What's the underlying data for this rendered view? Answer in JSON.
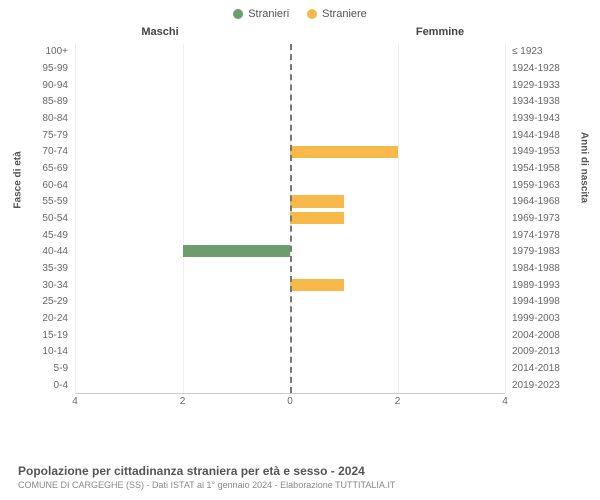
{
  "legend": {
    "male": {
      "label": "Stranieri",
      "color": "#6c9d6c"
    },
    "female": {
      "label": "Straniere",
      "color": "#f6b94a"
    }
  },
  "columns": {
    "male": "Maschi",
    "female": "Femmine"
  },
  "axis": {
    "left_title": "Fasce di età",
    "right_title": "Anni di nascita",
    "xmax": 4,
    "xticks": [
      4,
      2,
      0,
      2,
      4
    ]
  },
  "rows": [
    {
      "age": "100+",
      "year": "≤ 1923",
      "m": 0,
      "f": 0
    },
    {
      "age": "95-99",
      "year": "1924-1928",
      "m": 0,
      "f": 0
    },
    {
      "age": "90-94",
      "year": "1929-1933",
      "m": 0,
      "f": 0
    },
    {
      "age": "85-89",
      "year": "1934-1938",
      "m": 0,
      "f": 0
    },
    {
      "age": "80-84",
      "year": "1939-1943",
      "m": 0,
      "f": 0
    },
    {
      "age": "75-79",
      "year": "1944-1948",
      "m": 0,
      "f": 0
    },
    {
      "age": "70-74",
      "year": "1949-1953",
      "m": 0,
      "f": 2
    },
    {
      "age": "65-69",
      "year": "1954-1958",
      "m": 0,
      "f": 0
    },
    {
      "age": "60-64",
      "year": "1959-1963",
      "m": 0,
      "f": 0
    },
    {
      "age": "55-59",
      "year": "1964-1968",
      "m": 0,
      "f": 1
    },
    {
      "age": "50-54",
      "year": "1969-1973",
      "m": 0,
      "f": 1
    },
    {
      "age": "45-49",
      "year": "1974-1978",
      "m": 0,
      "f": 0
    },
    {
      "age": "40-44",
      "year": "1979-1983",
      "m": 2,
      "f": 0
    },
    {
      "age": "35-39",
      "year": "1984-1988",
      "m": 0,
      "f": 0
    },
    {
      "age": "30-34",
      "year": "1989-1993",
      "m": 0,
      "f": 1
    },
    {
      "age": "25-29",
      "year": "1994-1998",
      "m": 0,
      "f": 0
    },
    {
      "age": "20-24",
      "year": "1999-2003",
      "m": 0,
      "f": 0
    },
    {
      "age": "15-19",
      "year": "2004-2008",
      "m": 0,
      "f": 0
    },
    {
      "age": "10-14",
      "year": "2009-2013",
      "m": 0,
      "f": 0
    },
    {
      "age": "5-9",
      "year": "2014-2018",
      "m": 0,
      "f": 0
    },
    {
      "age": "0-4",
      "year": "2019-2023",
      "m": 0,
      "f": 0
    }
  ],
  "style": {
    "grid_color": "#eeeeee",
    "axis_line_color": "#cccccc",
    "center_dash_color": "#777777",
    "background": "#ffffff"
  },
  "footer": {
    "title": "Popolazione per cittadinanza straniera per età e sesso - 2024",
    "subtitle": "COMUNE DI CARGEGHE (SS) - Dati ISTAT al 1° gennaio 2024 - Elaborazione TUTTITALIA.IT"
  }
}
